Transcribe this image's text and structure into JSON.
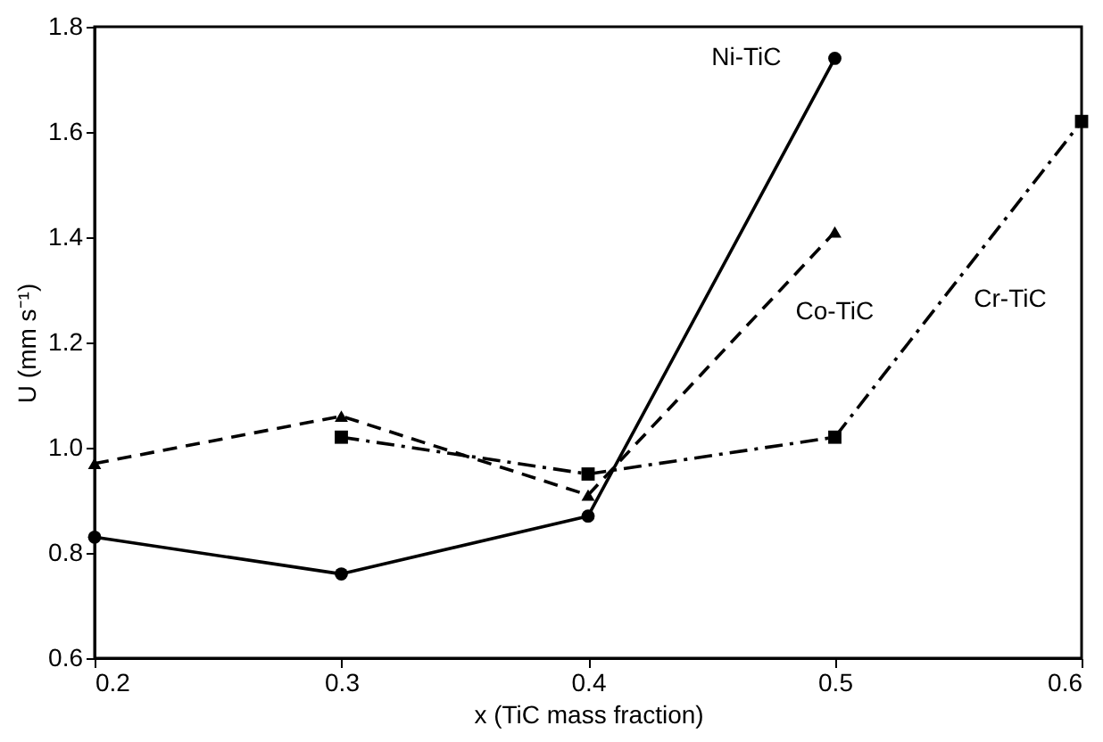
{
  "chart_data": {
    "type": "line",
    "xlabel": "x (TiC mass fraction)",
    "ylabel": "U (mm s⁻¹)",
    "x": [
      0.2,
      0.3,
      0.4,
      0.5,
      0.6
    ],
    "xlim": [
      0.2,
      0.6
    ],
    "xticks": [
      0.2,
      0.3,
      0.4,
      0.5,
      0.6
    ],
    "ylim": [
      0.6,
      1.8
    ],
    "yticks": [
      0.6,
      0.8,
      {
        "value": 1,
        "label": "1.0"
      },
      1.2,
      1.4,
      1.6,
      1.8
    ],
    "grid": false,
    "legend": false,
    "series": [
      {
        "name": "Ni-TiC",
        "color": "#000000",
        "marker": "circle",
        "line_style": "solid",
        "values": [
          0.83,
          0.76,
          0.87,
          1.74,
          null
        ]
      },
      {
        "name": "Co-TiC",
        "color": "#000000",
        "marker": "triangle",
        "line_style": "dashed",
        "values": [
          0.97,
          1.06,
          0.91,
          1.41,
          null
        ]
      },
      {
        "name": "Cr-TiC",
        "color": "#000000",
        "marker": "square",
        "line_style": "dashdot",
        "values": [
          null,
          1.02,
          0.95,
          1.02,
          1.62
        ]
      }
    ]
  }
}
